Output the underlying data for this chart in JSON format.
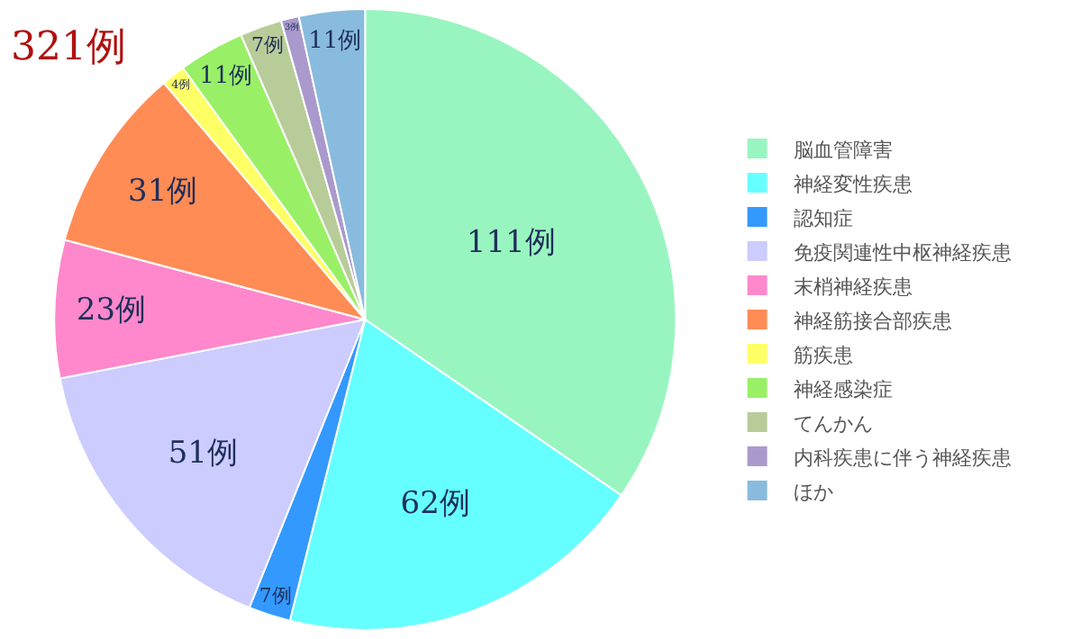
{
  "chart_data": {
    "type": "pie",
    "title": "321例",
    "categories": [
      "脳血管障害",
      "神経変性疾患",
      "認知症",
      "免疫関連性中枢神経疾患",
      "末梢神経疾患",
      "神経筋接合部疾患",
      "筋疾患",
      "神経感染症",
      "てんかん",
      "内科疾患に伴う神経疾患",
      "ほか"
    ],
    "values": [
      111,
      62,
      7,
      51,
      23,
      31,
      4,
      11,
      7,
      3,
      11
    ],
    "value_labels": [
      "111例",
      "62例",
      "7例",
      "51例",
      "23例",
      "31例",
      "4例",
      "11例",
      "7例",
      "3例",
      "11例"
    ],
    "colors": [
      "#99f5c0",
      "#66ffff",
      "#3399ff",
      "#ccccff",
      "#ff88cc",
      "#ff8c55",
      "#ffff66",
      "#99f066",
      "#b8cc99",
      "#aa99cc",
      "#88bbdd"
    ],
    "legend": "right"
  }
}
